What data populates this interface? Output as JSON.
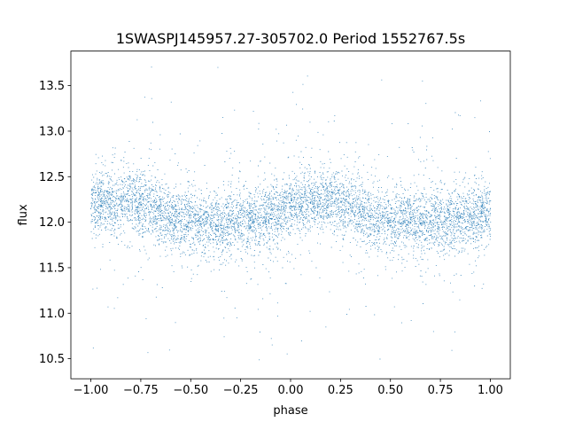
{
  "chart_data": {
    "type": "scatter",
    "title": "1SWASPJ145957.27-305702.0 Period 1552767.5s",
    "xlabel": "phase",
    "ylabel": "flux",
    "xlim": [
      -1.1,
      1.1
    ],
    "ylim": [
      10.28,
      13.88
    ],
    "xticks": [
      -1.0,
      -0.75,
      -0.5,
      -0.25,
      0.0,
      0.25,
      0.5,
      0.75,
      1.0
    ],
    "xtick_labels": [
      "−1.00",
      "−0.75",
      "−0.50",
      "−0.25",
      "0.00",
      "0.25",
      "0.50",
      "0.75",
      "1.00"
    ],
    "yticks": [
      10.5,
      11.0,
      11.5,
      12.0,
      12.5,
      13.0,
      13.5
    ],
    "ytick_labels": [
      "10.5",
      "11.0",
      "11.5",
      "12.0",
      "12.5",
      "13.0",
      "13.5"
    ],
    "grid": false,
    "marker_color": "#1f77b4",
    "series": [
      {
        "name": "",
        "description_points": [
          [
            -1.0,
            12.15
          ],
          [
            -0.95,
            12.25
          ],
          [
            -0.9,
            12.2
          ],
          [
            -0.85,
            12.22
          ],
          [
            -0.8,
            12.25
          ],
          [
            -0.75,
            12.2
          ],
          [
            -0.7,
            12.18
          ],
          [
            -0.65,
            12.12
          ],
          [
            -0.6,
            12.05
          ],
          [
            -0.55,
            12.02
          ],
          [
            -0.5,
            12.0
          ],
          [
            -0.45,
            11.98
          ],
          [
            -0.4,
            12.0
          ],
          [
            -0.35,
            11.98
          ],
          [
            -0.3,
            12.0
          ],
          [
            -0.25,
            12.0
          ],
          [
            -0.2,
            12.02
          ],
          [
            -0.15,
            12.05
          ],
          [
            -0.1,
            12.08
          ],
          [
            -0.05,
            12.1
          ],
          [
            0.0,
            12.15
          ],
          [
            0.05,
            12.2
          ],
          [
            0.1,
            12.22
          ],
          [
            0.15,
            12.2
          ],
          [
            0.2,
            12.25
          ],
          [
            0.25,
            12.22
          ],
          [
            0.3,
            12.2
          ],
          [
            0.35,
            12.12
          ],
          [
            0.4,
            12.05
          ],
          [
            0.45,
            12.02
          ],
          [
            0.5,
            12.0
          ],
          [
            0.55,
            11.98
          ],
          [
            0.6,
            12.0
          ],
          [
            0.65,
            11.98
          ],
          [
            0.7,
            12.0
          ],
          [
            0.75,
            12.0
          ],
          [
            0.8,
            12.02
          ],
          [
            0.85,
            12.05
          ],
          [
            0.9,
            12.08
          ],
          [
            0.95,
            12.1
          ],
          [
            1.0,
            12.15
          ]
        ]
      }
    ]
  }
}
